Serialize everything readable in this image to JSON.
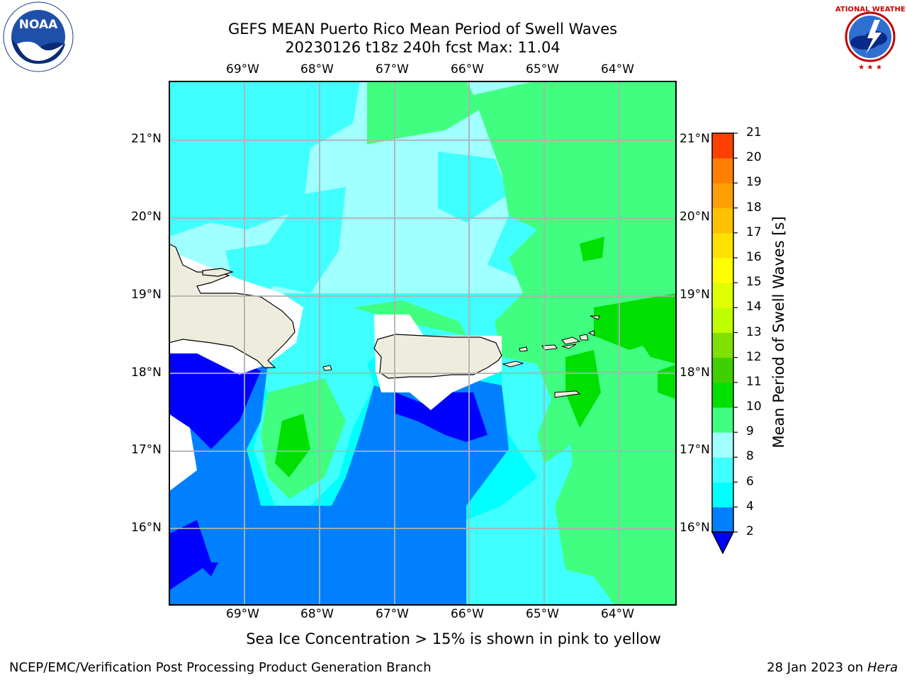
{
  "header": {
    "title_line1": "GEFS MEAN Puerto Rico Mean Period of Swell Waves",
    "title_line2": "20230126 t18z 240h fcst   Max: 11.04"
  },
  "logos": {
    "noaa_text": "NOAA",
    "noaa_ring_text": "NATIONAL OCEANIC AND ATMOSPHERIC ADMINISTRATION · U.S. DEPARTMENT OF COMMERCE",
    "nws_ring_text": "NATIONAL WEATHER SERVICE"
  },
  "map": {
    "lon_labels": [
      "69°W",
      "68°W",
      "67°W",
      "66°W",
      "65°W",
      "64°W"
    ],
    "lat_labels": [
      "21°N",
      "20°N",
      "19°N",
      "18°N",
      "17°N",
      "16°N"
    ],
    "ocean_legend_colors": {
      "2-4": "#0080ff",
      "4-6": "#00ffff",
      "6-8": "#40ffff",
      "8-9": "#a0ffff",
      "9-10": "#40ff80",
      "10-11": "#00e000",
      "below": "#0000ff",
      "land": "#eeecdc"
    }
  },
  "colorbar": {
    "label": "Mean Period of Swell Waves [s]",
    "ticks": [
      "2",
      "4",
      "6",
      "8",
      "9",
      "10",
      "11",
      "12",
      "13",
      "14",
      "15",
      "16",
      "17",
      "18",
      "19",
      "20",
      "21"
    ],
    "colors": [
      "#0080ff",
      "#00ffff",
      "#40ffff",
      "#a0ffff",
      "#40ff80",
      "#00e000",
      "#40d000",
      "#80e000",
      "#c0ff00",
      "#e0ff00",
      "#ffff00",
      "#ffe000",
      "#ffc000",
      "#ffa000",
      "#ff8000",
      "#ff4000",
      "#ff0000"
    ],
    "under_color": "#0000ff"
  },
  "note": "Sea Ice Concentration > 15% is shown in pink to yellow",
  "footer": {
    "left": "NCEP/EMC/Verification Post Processing Product Generation Branch",
    "right_prefix": "28 Jan 2023 on",
    "right_host": "Hera"
  }
}
